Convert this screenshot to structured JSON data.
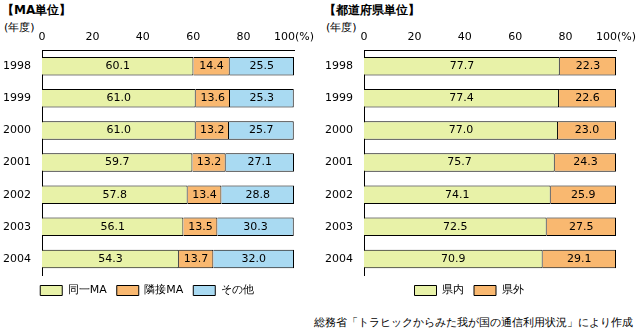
{
  "chart_data": [
    {
      "type": "bar",
      "title": "【MA単位】",
      "ylabel": "(年度)",
      "orientation": "horizontal",
      "stacked": true,
      "data_labels": true,
      "grid": false,
      "legend": "bottom",
      "categories": [
        "1998",
        "1999",
        "2000",
        "2001",
        "2002",
        "2003",
        "2004"
      ],
      "series": [
        {
          "name": "同一MA",
          "color": "#e8f2a8",
          "values": [
            60.1,
            61.0,
            61.0,
            59.7,
            57.8,
            56.1,
            54.3
          ],
          "value_labels": [
            "60.1",
            "61.0",
            "61.0",
            "59.7",
            "57.8",
            "56.1",
            "54.3"
          ]
        },
        {
          "name": "隣接MA",
          "color": "#f9b870",
          "values": [
            14.4,
            13.6,
            13.2,
            13.2,
            13.4,
            13.5,
            13.7
          ],
          "value_labels": [
            "14.4",
            "13.6",
            "13.2",
            "13.2",
            "13.4",
            "13.5",
            "13.7"
          ]
        },
        {
          "name": "その他",
          "color": "#a9daf2",
          "values": [
            25.5,
            25.3,
            25.7,
            27.1,
            28.8,
            30.3,
            32.0
          ],
          "value_labels": [
            "25.5",
            "25.3",
            "25.7",
            "27.1",
            "28.8",
            "30.3",
            "32.0"
          ]
        }
      ],
      "xlim": [
        0,
        100
      ],
      "xticks": [
        0,
        20,
        40,
        60,
        80,
        {
          "value": 100,
          "label": "100(%)"
        }
      ]
    },
    {
      "type": "bar",
      "title": "【都道府県単位】",
      "ylabel": "(年度)",
      "orientation": "horizontal",
      "stacked": true,
      "data_labels": true,
      "grid": false,
      "legend": "bottom",
      "categories": [
        "1998",
        "1999",
        "2000",
        "2001",
        "2002",
        "2003",
        "2004"
      ],
      "series": [
        {
          "name": "県内",
          "color": "#e8f2a8",
          "values": [
            77.7,
            77.4,
            77.0,
            75.7,
            74.1,
            72.5,
            70.9
          ],
          "value_labels": [
            "77.7",
            "77.4",
            "77.0",
            "75.7",
            "74.1",
            "72.5",
            "70.9"
          ]
        },
        {
          "name": "県外",
          "color": "#f9b870",
          "values": [
            22.3,
            22.6,
            23.0,
            24.3,
            25.9,
            27.5,
            29.1
          ],
          "value_labels": [
            "22.3",
            "22.6",
            "23.0",
            "24.3",
            "25.9",
            "27.5",
            "29.1"
          ]
        }
      ],
      "xlim": [
        0,
        100
      ],
      "xticks": [
        0,
        20,
        40,
        60,
        80,
        {
          "value": 100,
          "label": "100(%)"
        }
      ]
    }
  ],
  "source": "総務省「トラヒックからみた我が国の通信利用状況」により作成"
}
